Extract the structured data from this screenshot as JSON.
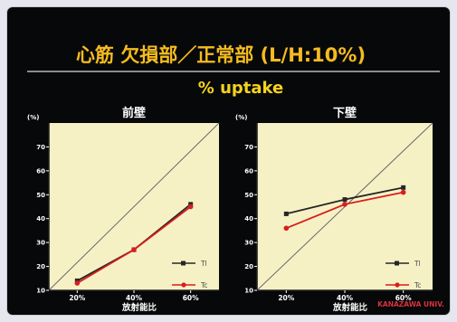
{
  "slide": {
    "title": "心筋 欠損部／正常部 (L/H:10%)",
    "subtitle": "% uptake",
    "watermark": "KANAZAWA UNIV.",
    "colors": {
      "background": "#07080a",
      "title": "#f5bc1e",
      "subtitle": "#f5d21e",
      "plot_bg": "#f6f1c5",
      "series_tl": "#262626",
      "series_tc": "#d81e1e",
      "watermark": "#d8323c"
    }
  },
  "chart_data": [
    {
      "type": "line",
      "title": "前壁",
      "xlabel": "放射能比",
      "ylabel": "(%)",
      "x": [
        20,
        40,
        60
      ],
      "x_tick_labels": [
        "20%",
        "40%",
        "60%"
      ],
      "y_ticks": [
        10,
        20,
        30,
        40,
        50,
        60,
        70
      ],
      "ylim": [
        10,
        80
      ],
      "identity_line": true,
      "grid": false,
      "legend": "bottom-right",
      "series": [
        {
          "name": "Tl",
          "values": [
            14,
            27,
            46
          ],
          "color": "#262626",
          "marker": "square"
        },
        {
          "name": "Tc",
          "values": [
            13,
            27,
            45
          ],
          "color": "#d81e1e",
          "marker": "circle"
        }
      ]
    },
    {
      "type": "line",
      "title": "下壁",
      "xlabel": "放射能比",
      "ylabel": "(%)",
      "x": [
        20,
        40,
        60
      ],
      "x_tick_labels": [
        "20%",
        "40%",
        "60%"
      ],
      "y_ticks": [
        10,
        20,
        30,
        40,
        50,
        60,
        70
      ],
      "ylim": [
        10,
        80
      ],
      "identity_line": true,
      "grid": false,
      "legend": "bottom-right",
      "series": [
        {
          "name": "Tl",
          "values": [
            42,
            48,
            53
          ],
          "color": "#262626",
          "marker": "square"
        },
        {
          "name": "Tc",
          "values": [
            36,
            46,
            51
          ],
          "color": "#d81e1e",
          "marker": "circle"
        }
      ]
    }
  ]
}
